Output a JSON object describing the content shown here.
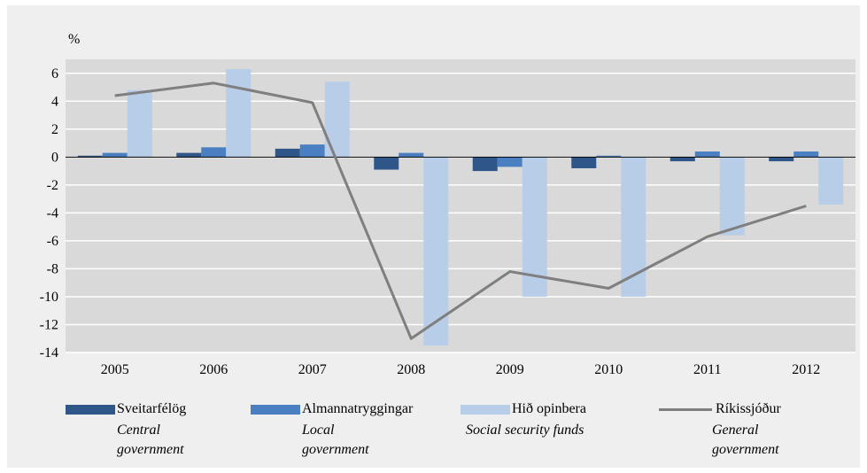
{
  "chart_data": {
    "type": "bar",
    "ylabel": "%",
    "ylim": [
      -14,
      7
    ],
    "yticks": [
      6,
      4,
      2,
      0,
      -2,
      -4,
      -6,
      -8,
      -10,
      -12,
      -14
    ],
    "categories": [
      "2005",
      "2006",
      "2007",
      "2008",
      "2009",
      "2010",
      "2011",
      "2012"
    ],
    "grid": true,
    "legend_position": "bottom",
    "series": [
      {
        "name": "Sveitarfélög",
        "name_en": "Central government",
        "type": "bar",
        "color": "#2e5689",
        "values": [
          0.1,
          0.3,
          0.6,
          -0.9,
          -1.0,
          -0.8,
          -0.3,
          -0.3
        ]
      },
      {
        "name": "Almannatryggingar",
        "name_en": "Local government",
        "type": "bar",
        "color": "#4a7fc1",
        "values": [
          0.3,
          0.7,
          0.9,
          0.3,
          -0.7,
          0.1,
          0.4,
          0.4
        ]
      },
      {
        "name": "Hið opinbera",
        "name_en": "Social security funds",
        "type": "bar",
        "color": "#b8cde8",
        "values": [
          4.8,
          6.3,
          5.4,
          -13.5,
          -10.0,
          -10.0,
          -5.6,
          -3.4
        ]
      },
      {
        "name": "Ríkissjóður",
        "name_en": "General government",
        "type": "line",
        "color": "#7f7f7f",
        "values": [
          4.4,
          5.3,
          3.9,
          -13.0,
          -8.2,
          -9.4,
          -5.7,
          -3.5
        ]
      }
    ]
  },
  "legend": [
    {
      "label": "Sveitarfélög",
      "sublabel": "Central\ngovernment",
      "color": "#2e5689",
      "kind": "bar"
    },
    {
      "label": "Almannatryggingar",
      "sublabel": "Local\ngovernment",
      "color": "#4a7fc1",
      "kind": "bar"
    },
    {
      "label": "Hið opinbera",
      "sublabel": "Social security funds",
      "color": "#b8cde8",
      "kind": "bar"
    },
    {
      "label": "Ríkissjóður",
      "sublabel": "General\ngovernment",
      "color": "#7f7f7f",
      "kind": "line"
    }
  ]
}
